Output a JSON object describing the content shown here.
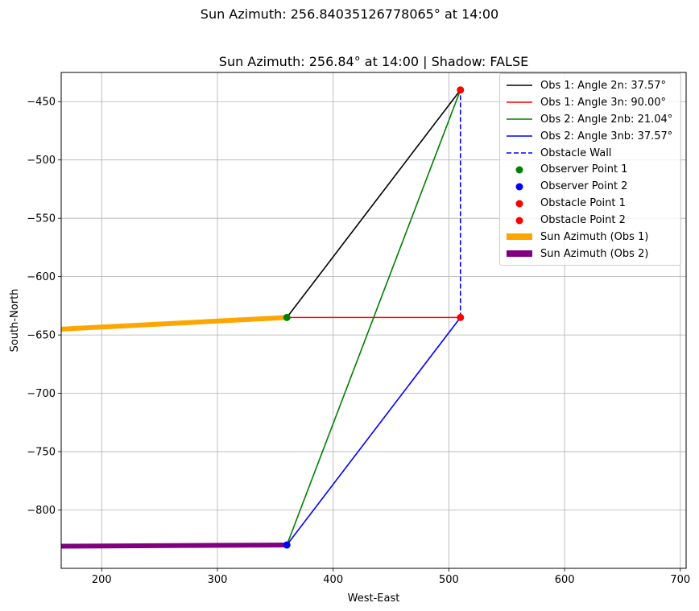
{
  "suptitle": "Sun Azimuth: 256.84035126778065° at 14:00",
  "chart_data": {
    "type": "line",
    "title": "Sun Azimuth: 256.84° at 14:00 | Shadow: FALSE",
    "xlabel": "West-East",
    "ylabel": "South-North",
    "xlim": [
      165,
      705
    ],
    "ylim": [
      -850,
      -425
    ],
    "xticks": [
      200,
      300,
      400,
      500,
      600,
      700
    ],
    "yticks": [
      -450,
      -500,
      -550,
      -600,
      -650,
      -700,
      -750,
      -800
    ],
    "grid": true,
    "legend_position": "top-right",
    "series": [
      {
        "name": "Obs 1: Angle 2n: 37.57°",
        "kind": "line",
        "color": "#000000",
        "x": [
          360,
          510
        ],
        "y": [
          -635,
          -440
        ]
      },
      {
        "name": "Obs 1: Angle 3n: 90.00°",
        "kind": "line",
        "color": "#ff0000",
        "x": [
          360,
          510
        ],
        "y": [
          -635,
          -635
        ]
      },
      {
        "name": "Obs 2: Angle 2nb: 21.04°",
        "kind": "line",
        "color": "#008000",
        "x": [
          360,
          510
        ],
        "y": [
          -830,
          -440
        ]
      },
      {
        "name": "Obs 2: Angle 3nb: 37.57°",
        "kind": "line",
        "color": "#0000ff",
        "x": [
          360,
          510
        ],
        "y": [
          -830,
          -635
        ]
      },
      {
        "name": "Obstacle Wall",
        "kind": "dashed",
        "color": "#0000ff",
        "x": [
          510,
          510
        ],
        "y": [
          -635,
          -440
        ]
      },
      {
        "name": "Observer Point 1",
        "kind": "point",
        "color": "#008000",
        "x": [
          360
        ],
        "y": [
          -635
        ]
      },
      {
        "name": "Observer Point 2",
        "kind": "point",
        "color": "#0000ff",
        "x": [
          360
        ],
        "y": [
          -830
        ]
      },
      {
        "name": "Obstacle Point 1",
        "kind": "point",
        "color": "#ff0000",
        "x": [
          510
        ],
        "y": [
          -440
        ]
      },
      {
        "name": "Obstacle Point 2",
        "kind": "point",
        "color": "#ff0000",
        "x": [
          510
        ],
        "y": [
          -635
        ]
      },
      {
        "name": "Sun Azimuth (Obs 1)",
        "kind": "thick",
        "color": "#ffa500",
        "x": [
          360,
          165
        ],
        "y": [
          -635,
          -645
        ]
      },
      {
        "name": "Sun Azimuth (Obs 2)",
        "kind": "thick",
        "color": "#800080",
        "x": [
          360,
          165
        ],
        "y": [
          -830,
          -831
        ]
      }
    ]
  }
}
